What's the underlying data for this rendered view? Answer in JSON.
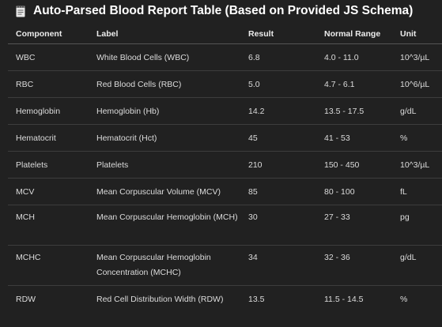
{
  "heading": {
    "icon": "memo-icon",
    "text": "Auto-Parsed Blood Report Table (Based on Provided JS Schema)"
  },
  "table": {
    "columns": [
      "Component",
      "Label",
      "Result",
      "Normal Range",
      "Unit"
    ],
    "rows": [
      {
        "component": "WBC",
        "label": "White Blood Cells (WBC)",
        "result": "6.8",
        "range": "4.0 - 11.0",
        "unit": "10^3/µL"
      },
      {
        "component": "RBC",
        "label": "Red Blood Cells (RBC)",
        "result": "5.0",
        "range": "4.7 - 6.1",
        "unit": "10^6/µL"
      },
      {
        "component": "Hemoglobin",
        "label": "Hemoglobin (Hb)",
        "result": "14.2",
        "range": "13.5 - 17.5",
        "unit": "g/dL"
      },
      {
        "component": "Hematocrit",
        "label": "Hematocrit (Hct)",
        "result": "45",
        "range": "41 - 53",
        "unit": "%"
      },
      {
        "component": "Platelets",
        "label": "Platelets",
        "result": "210",
        "range": "150 - 450",
        "unit": "10^3/µL"
      },
      {
        "component": "MCV",
        "label": "Mean Corpuscular Volume (MCV)",
        "result": "85",
        "range": "80 - 100",
        "unit": "fL"
      },
      {
        "component": "MCH",
        "label": "Mean Corpuscular Hemoglobin (MCH)",
        "result": "30",
        "range": "27 - 33",
        "unit": "pg"
      },
      {
        "component": "MCHC",
        "label": "Mean Corpuscular Hemoglobin Concentration (MCHC)",
        "result": "34",
        "range": "32 - 36",
        "unit": "g/dL"
      },
      {
        "component": "RDW",
        "label": "Red Cell Distribution Width (RDW)",
        "result": "13.5",
        "range": "11.5 - 14.5",
        "unit": "%"
      }
    ]
  },
  "colors": {
    "background": "#212121",
    "text": "#ececec",
    "divider": "#3d3d3d"
  }
}
